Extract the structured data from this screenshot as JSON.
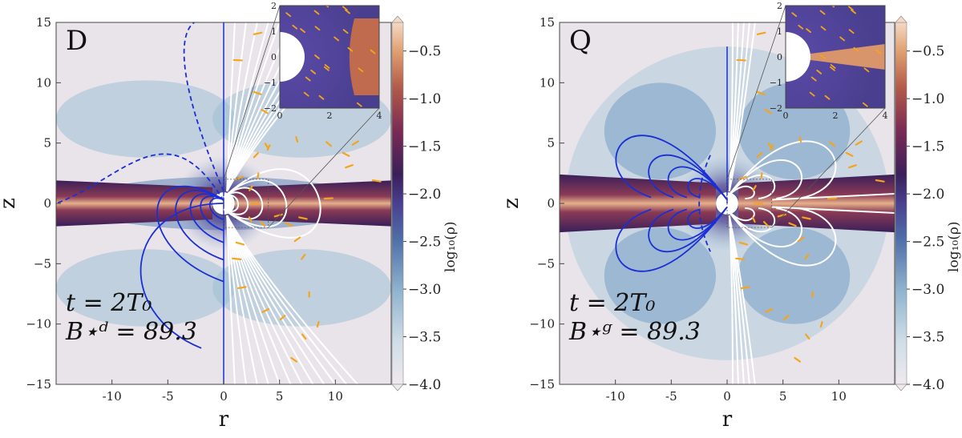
{
  "chart_data": [
    {
      "type": "heatmap",
      "panel_label": "D",
      "annotation_lines": [
        "t = 2T₀",
        "B⋆ᵈ = 89.3"
      ],
      "xlabel": "r",
      "ylabel": "z",
      "xlim": [
        -15,
        15
      ],
      "ylim": [
        -15,
        15
      ],
      "x_ticks": [
        {
          "value": -10,
          "label": "-10"
        },
        {
          "value": -5,
          "label": "-5"
        },
        {
          "value": 0,
          "label": "0"
        },
        {
          "value": 5,
          "label": "5"
        },
        {
          "value": 10,
          "label": "10"
        }
      ],
      "y_ticks": [
        {
          "value": -15,
          "label": "−15"
        },
        {
          "value": -10,
          "label": "−10"
        },
        {
          "value": -5,
          "label": "−5"
        },
        {
          "value": 0,
          "label": "0"
        },
        {
          "value": 5,
          "label": "5"
        },
        {
          "value": 10,
          "label": "10"
        },
        {
          "value": 15,
          "label": "15"
        }
      ],
      "colorbar": {
        "label": "log₁₀(ρ)",
        "range": [
          -4.0,
          -0.2
        ],
        "ticks": [
          {
            "value": -0.5,
            "label": "−0.5"
          },
          {
            "value": -1.0,
            "label": "−1.0"
          },
          {
            "value": -1.5,
            "label": "−1.5"
          },
          {
            "value": -2.0,
            "label": "−2.0"
          },
          {
            "value": -2.5,
            "label": "−2.5"
          },
          {
            "value": -3.0,
            "label": "−3.0"
          },
          {
            "value": -3.5,
            "label": "−3.5"
          },
          {
            "value": -4.0,
            "label": "−4.0"
          }
        ]
      },
      "inset": {
        "xlim": [
          0,
          4
        ],
        "ylim": [
          -2,
          2
        ],
        "x_ticks": [
          {
            "value": 0,
            "label": "0"
          },
          {
            "value": 2,
            "label": "2"
          },
          {
            "value": 4,
            "label": "4"
          }
        ],
        "y_ticks": [
          {
            "value": -2,
            "label": "−2"
          },
          {
            "value": -1,
            "label": "−1"
          },
          {
            "value": 0,
            "label": "0"
          },
          {
            "value": 1,
            "label": "1"
          },
          {
            "value": 2,
            "label": "2"
          }
        ]
      },
      "field_geometry": "dipole",
      "colors": {
        "left_field_lines": "#1a2fd6",
        "right_field_lines": "#ffffff",
        "velocity_arrows": "#f5a51a",
        "disk": "#b35a4a"
      }
    },
    {
      "type": "heatmap",
      "panel_label": "Q",
      "annotation_lines": [
        "t = 2T₀",
        "B⋆ᵍ = 89.3"
      ],
      "xlabel": "r",
      "ylabel": "z",
      "xlim": [
        -15,
        15
      ],
      "ylim": [
        -15,
        15
      ],
      "x_ticks": [
        {
          "value": -10,
          "label": "-10"
        },
        {
          "value": -5,
          "label": "-5"
        },
        {
          "value": 0,
          "label": "0"
        },
        {
          "value": 5,
          "label": "5"
        },
        {
          "value": 10,
          "label": "10"
        }
      ],
      "y_ticks": [
        {
          "value": -15,
          "label": "−15"
        },
        {
          "value": -10,
          "label": "−10"
        },
        {
          "value": -5,
          "label": "−5"
        },
        {
          "value": 0,
          "label": "0"
        },
        {
          "value": 5,
          "label": "5"
        },
        {
          "value": 10,
          "label": "10"
        },
        {
          "value": 15,
          "label": "15"
        }
      ],
      "colorbar": {
        "label": "log₁₀(ρ)",
        "range": [
          -4.0,
          -0.2
        ],
        "ticks": [
          {
            "value": -0.5,
            "label": "−0.5"
          },
          {
            "value": -1.0,
            "label": "−1.0"
          },
          {
            "value": -1.5,
            "label": "−1.5"
          },
          {
            "value": -2.0,
            "label": "−2.0"
          },
          {
            "value": -2.5,
            "label": "−2.5"
          },
          {
            "value": -3.0,
            "label": "−3.0"
          },
          {
            "value": -3.5,
            "label": "−3.5"
          },
          {
            "value": -4.0,
            "label": "−4.0"
          }
        ]
      },
      "inset": {
        "xlim": [
          0,
          4
        ],
        "ylim": [
          -2,
          2
        ],
        "x_ticks": [
          {
            "value": 0,
            "label": "0"
          },
          {
            "value": 2,
            "label": "2"
          },
          {
            "value": 4,
            "label": "4"
          }
        ],
        "y_ticks": [
          {
            "value": -2,
            "label": "−2"
          },
          {
            "value": -1,
            "label": "−1"
          },
          {
            "value": 0,
            "label": "0"
          },
          {
            "value": 1,
            "label": "1"
          },
          {
            "value": 2,
            "label": "2"
          }
        ]
      },
      "field_geometry": "quadrupole",
      "colors": {
        "left_field_lines": "#1a2fd6",
        "right_field_lines": "#ffffff",
        "velocity_arrows": "#f5a51a",
        "disk": "#b35a4a"
      }
    }
  ]
}
